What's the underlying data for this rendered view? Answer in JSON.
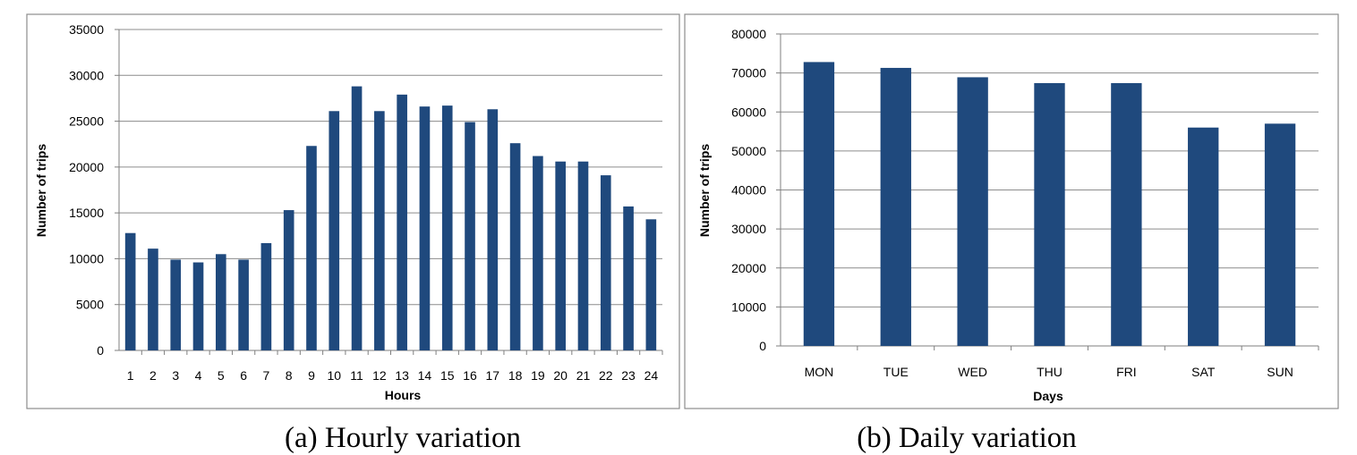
{
  "chart_data": [
    {
      "type": "bar",
      "caption": "(a) Hourly variation",
      "xlabel": "Hours",
      "ylabel": "Number of trips",
      "ylim": [
        0,
        35000
      ],
      "yticks": [
        "0",
        "5000",
        "10000",
        "15000",
        "20000",
        "25000",
        "30000",
        "35000"
      ],
      "categories": [
        "1",
        "2",
        "3",
        "4",
        "5",
        "6",
        "7",
        "8",
        "9",
        "10",
        "11",
        "12",
        "13",
        "14",
        "15",
        "16",
        "17",
        "18",
        "19",
        "20",
        "21",
        "22",
        "23",
        "24"
      ],
      "values": [
        12800,
        11100,
        9900,
        9600,
        10500,
        9900,
        11700,
        15300,
        22300,
        26100,
        28800,
        26100,
        27900,
        26600,
        26700,
        24900,
        26300,
        22600,
        21200,
        20600,
        20600,
        19100,
        15700,
        14300
      ],
      "grid": true,
      "bar_color": "#1f497d"
    },
    {
      "type": "bar",
      "caption": "(b) Daily variation",
      "xlabel": "Days",
      "ylabel": "Number of trips",
      "ylim": [
        0,
        80000
      ],
      "yticks": [
        "0",
        "10000",
        "20000",
        "30000",
        "40000",
        "50000",
        "60000",
        "70000",
        "80000"
      ],
      "categories": [
        "MON",
        "TUE",
        "WED",
        "THU",
        "FRI",
        "SAT",
        "SUN"
      ],
      "values": [
        72800,
        71300,
        68900,
        67400,
        67400,
        56000,
        57000
      ],
      "grid": true,
      "bar_color": "#1f497d"
    }
  ]
}
